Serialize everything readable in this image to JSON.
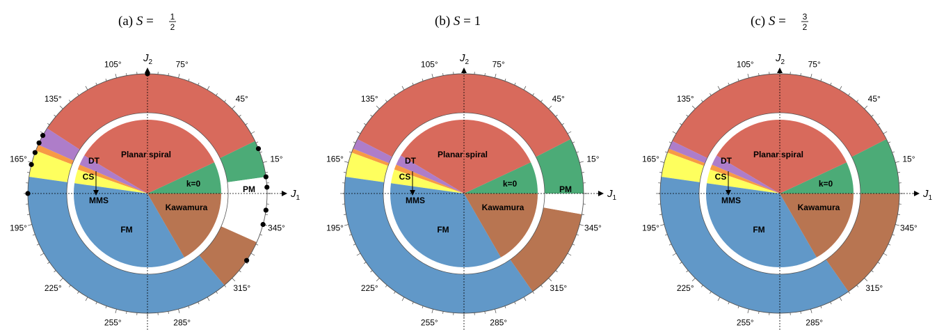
{
  "colors": {
    "planar_spiral": "#d86a5c",
    "kawamura": "#b87551",
    "fm": "#6198c8",
    "k0": "#4cab77",
    "dt": "#ae7dc9",
    "cs": "#feff5e",
    "orange": "#f79a45",
    "pm": "#ffffff",
    "outline": "#555555"
  },
  "axes": {
    "x_label": "J",
    "x_sub": "1",
    "y_label": "J",
    "y_sub": "2"
  },
  "angle_labels": [
    "15°",
    "45°",
    "75°",
    "105°",
    "135°",
    "165°",
    "195°",
    "225°",
    "255°",
    "285°",
    "315°",
    "345°"
  ],
  "region_labels": {
    "planar_spiral": "Planar spiral",
    "k0": "k=0",
    "dt": "DT",
    "cs": "CS",
    "mms": "MMS",
    "kawamura": "Kawamura",
    "fm": "FM",
    "pm": "PM"
  },
  "panels": [
    {
      "title": {
        "prefix": "(a) ",
        "var": "S",
        "eq": " = ",
        "num": "1",
        "den": "2",
        "value": ""
      },
      "outer": [
        {
          "name": "k0",
          "from": 8,
          "to": 26
        },
        {
          "name": "planar_spiral",
          "from": 26,
          "to": 147
        },
        {
          "name": "dt",
          "from": 147,
          "to": 156
        },
        {
          "name": "orange",
          "from": 156,
          "to": 159
        },
        {
          "name": "cs",
          "from": 159,
          "to": 172
        },
        {
          "name": "fm",
          "from": 172,
          "to": 310
        },
        {
          "name": "kawamura",
          "from": 310,
          "to": 336
        }
      ],
      "pm": {
        "from": 336,
        "to": 8
      },
      "inner": [
        {
          "name": "k0",
          "from": 0,
          "to": 25
        },
        {
          "name": "planar_spiral",
          "from": 25,
          "to": 149
        },
        {
          "name": "dt",
          "from": 149,
          "to": 157
        },
        {
          "name": "orange",
          "from": 157,
          "to": 161
        },
        {
          "name": "cs",
          "from": 161,
          "to": 172
        },
        {
          "name": "fm",
          "from": 172,
          "to": 300
        },
        {
          "name": "kawamura",
          "from": 300,
          "to": 360
        }
      ],
      "pm_label": "PM",
      "markers": [
        90,
        22,
        8,
        3,
        352,
        345,
        326,
        180,
        166,
        160,
        155,
        151
      ]
    },
    {
      "title": {
        "prefix": "(b) ",
        "var": "S",
        "eq": " = ",
        "num": "",
        "den": "",
        "value": "1"
      },
      "outer": [
        {
          "name": "k0",
          "from": 0,
          "to": 27
        },
        {
          "name": "planar_spiral",
          "from": 27,
          "to": 153
        },
        {
          "name": "dt",
          "from": 153,
          "to": 158
        },
        {
          "name": "orange",
          "from": 158,
          "to": 160
        },
        {
          "name": "cs",
          "from": 160,
          "to": 172
        },
        {
          "name": "fm",
          "from": 172,
          "to": 305
        },
        {
          "name": "kawamura",
          "from": 305,
          "to": 350
        }
      ],
      "pm": {
        "from": 350,
        "to": 0
      },
      "inner": [
        {
          "name": "k0",
          "from": 0,
          "to": 25
        },
        {
          "name": "planar_spiral",
          "from": 25,
          "to": 149
        },
        {
          "name": "dt",
          "from": 149,
          "to": 157
        },
        {
          "name": "orange",
          "from": 157,
          "to": 161
        },
        {
          "name": "cs",
          "from": 161,
          "to": 172
        },
        {
          "name": "fm",
          "from": 172,
          "to": 300
        },
        {
          "name": "kawamura",
          "from": 300,
          "to": 360
        }
      ],
      "pm_label": "PM",
      "markers": []
    },
    {
      "title": {
        "prefix": "(c) ",
        "var": "S",
        "eq": " = ",
        "num": "3",
        "den": "2",
        "value": ""
      },
      "outer": [
        {
          "name": "k0",
          "from": 0,
          "to": 27
        },
        {
          "name": "planar_spiral",
          "from": 27,
          "to": 154
        },
        {
          "name": "dt",
          "from": 154,
          "to": 158
        },
        {
          "name": "orange",
          "from": 158,
          "to": 160
        },
        {
          "name": "cs",
          "from": 160,
          "to": 172
        },
        {
          "name": "fm",
          "from": 172,
          "to": 305
        },
        {
          "name": "kawamura",
          "from": 305,
          "to": 360
        }
      ],
      "pm": null,
      "inner": [
        {
          "name": "k0",
          "from": 0,
          "to": 25
        },
        {
          "name": "planar_spiral",
          "from": 25,
          "to": 149
        },
        {
          "name": "dt",
          "from": 149,
          "to": 157
        },
        {
          "name": "orange",
          "from": 157,
          "to": 161
        },
        {
          "name": "cs",
          "from": 161,
          "to": 172
        },
        {
          "name": "fm",
          "from": 172,
          "to": 300
        },
        {
          "name": "kawamura",
          "from": 300,
          "to": 360
        }
      ],
      "pm_label": "",
      "markers": []
    }
  ]
}
